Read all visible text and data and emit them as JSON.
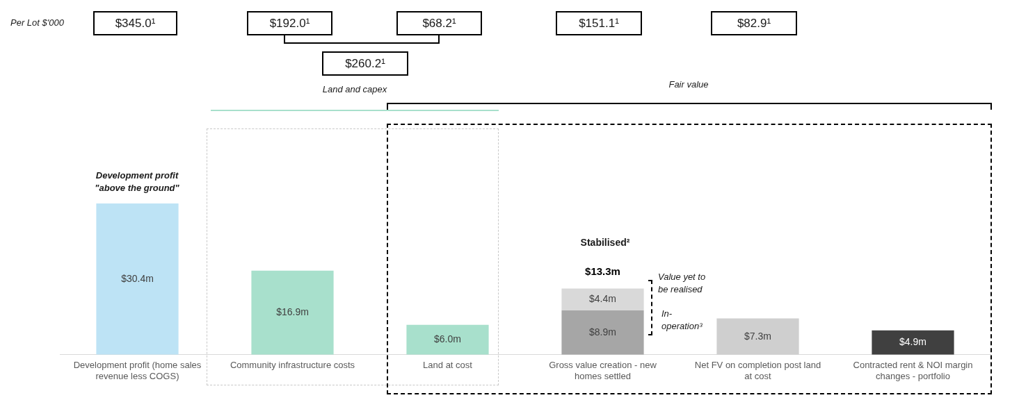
{
  "chart_data": {
    "type": "bar",
    "stacked": true,
    "categories": [
      "Development profit (home sales revenue less COGS)",
      "Community infrastructure costs",
      "Land at cost",
      "Gross value creation - new homes settled",
      "Net FV on completion post land at cost",
      "Contracted rent & NOI margin changes - portfolio"
    ],
    "series": [
      {
        "colors": [
          "#bde3f5",
          "#a8e0cc",
          "#a8e0cc",
          "#a6a6a6",
          "#cfcfcf",
          "#404040"
        ],
        "values": [
          30.4,
          16.9,
          6.0,
          8.9,
          7.3,
          4.9
        ],
        "value_labels": [
          "$30.4m",
          "$16.9m",
          "$6.0m",
          "$8.9m",
          "$7.3m",
          "$4.9m"
        ]
      },
      {
        "color": "#d9d9d9",
        "values": [
          null,
          null,
          null,
          4.4,
          null,
          null
        ],
        "value_labels": [
          null,
          null,
          null,
          "$4.4m",
          null,
          null
        ]
      }
    ],
    "totals": [
      null,
      null,
      null,
      "$13.3m",
      null,
      null
    ],
    "tick_labels": "x",
    "legend": false,
    "grid": false,
    "annotations": [
      "Per Lot $'000",
      "$345.0¹",
      "$192.0¹",
      "$68.2¹",
      "$260.2¹",
      "$151.1¹",
      "$82.9¹",
      "Land and capex",
      "Fair value",
      "Development profit \"above the ground\"",
      "Stabilised²",
      "Value yet to be realised",
      "In-operation³"
    ]
  }
}
